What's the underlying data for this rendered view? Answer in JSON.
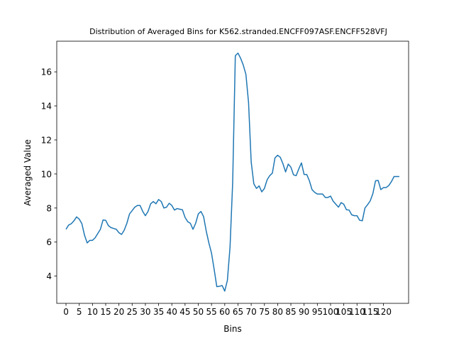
{
  "chart_data": {
    "type": "line",
    "title": "Distribution of Averaged Bins for K562.stranded.ENCFF097ASF.ENCFF528VFJ",
    "xlabel": "Bins",
    "ylabel": "Averaged Value",
    "xlim": [
      -3.5,
      129.5
    ],
    "ylim": [
      2.4,
      17.8
    ],
    "xticks": [
      0,
      5,
      10,
      15,
      20,
      25,
      30,
      35,
      40,
      45,
      50,
      55,
      60,
      65,
      70,
      75,
      80,
      85,
      90,
      95,
      100,
      105,
      110,
      115,
      120
    ],
    "yticks": [
      4,
      6,
      8,
      10,
      12,
      14,
      16
    ],
    "grid": false,
    "series": [
      {
        "color": "#1f77b4",
        "x": [
          0,
          1,
          2,
          3,
          4,
          5,
          6,
          7,
          8,
          9,
          10,
          11,
          12,
          13,
          14,
          15,
          16,
          17,
          18,
          19,
          20,
          21,
          22,
          23,
          24,
          25,
          26,
          27,
          28,
          29,
          30,
          31,
          32,
          33,
          34,
          35,
          36,
          37,
          38,
          39,
          40,
          41,
          42,
          43,
          44,
          45,
          46,
          47,
          48,
          49,
          50,
          51,
          52,
          53,
          54,
          55,
          56,
          57,
          58,
          59,
          60,
          61,
          62,
          63,
          64,
          65,
          66,
          67,
          68,
          69,
          70,
          71,
          72,
          73,
          74,
          75,
          76,
          77,
          78,
          79,
          80,
          81,
          82,
          83,
          84,
          85,
          86,
          87,
          88,
          89,
          90,
          91,
          92,
          93,
          94,
          95,
          96,
          97,
          98,
          99,
          100,
          101,
          102,
          103,
          104,
          105,
          106,
          107,
          108,
          109,
          110,
          111,
          112,
          113,
          114,
          115,
          116,
          117,
          118,
          119,
          120,
          121,
          122,
          123,
          124,
          125,
          126
        ],
        "values": [
          6.75,
          7.0,
          7.08,
          7.25,
          7.48,
          7.35,
          7.08,
          6.4,
          5.95,
          6.1,
          6.1,
          6.25,
          6.5,
          6.75,
          7.3,
          7.28,
          6.97,
          6.85,
          6.8,
          6.75,
          6.55,
          6.45,
          6.7,
          7.1,
          7.65,
          7.85,
          8.05,
          8.15,
          8.15,
          7.8,
          7.55,
          7.8,
          8.25,
          8.38,
          8.25,
          8.5,
          8.38,
          8.0,
          8.05,
          8.28,
          8.15,
          7.88,
          7.97,
          7.93,
          7.9,
          7.45,
          7.2,
          7.1,
          6.75,
          7.1,
          7.65,
          7.8,
          7.5,
          6.65,
          5.95,
          5.35,
          4.4,
          3.38,
          3.4,
          3.45,
          3.12,
          3.75,
          5.7,
          9.5,
          16.95,
          17.1,
          16.8,
          16.4,
          15.85,
          14.2,
          10.7,
          9.42,
          9.15,
          9.3,
          8.95,
          9.15,
          9.65,
          9.9,
          10.05,
          10.95,
          11.1,
          10.98,
          10.6,
          10.12,
          10.58,
          10.4,
          9.95,
          9.9,
          10.3,
          10.65,
          9.97,
          9.97,
          9.6,
          9.08,
          8.92,
          8.82,
          8.82,
          8.82,
          8.62,
          8.62,
          8.7,
          8.4,
          8.22,
          8.05,
          8.32,
          8.22,
          7.9,
          7.88,
          7.6,
          7.55,
          7.55,
          7.28,
          7.25,
          8.0,
          8.2,
          8.42,
          8.85,
          9.6,
          9.62,
          9.08,
          9.2,
          9.2,
          9.32,
          9.55,
          9.85,
          9.85,
          9.85
        ]
      }
    ]
  }
}
